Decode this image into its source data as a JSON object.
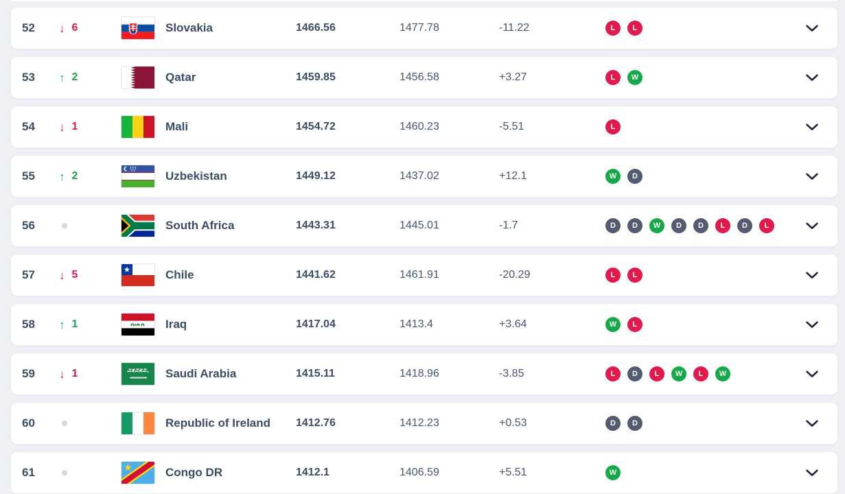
{
  "colors": {
    "background": "#eef0f6",
    "card": "#ffffff",
    "text_dark": "#3c4b66",
    "text_regular": "#47566f",
    "up_green": "#10a74f",
    "down_red": "#e01a4d",
    "badge_win": "#17a948",
    "badge_draw": "#515b72",
    "badge_loss": "#e01a4d",
    "no_change_dot": "#d3d9e3",
    "chevron": "#16233f"
  },
  "rows": [
    {
      "rank": "52",
      "movement": {
        "direction": "down",
        "value": "6"
      },
      "flag": "svk",
      "country": "Slovakia",
      "total_points": "1466.56",
      "previous_points": "1477.78",
      "change": "-11.22",
      "form": [
        "L",
        "L"
      ]
    },
    {
      "rank": "53",
      "movement": {
        "direction": "up",
        "value": "2"
      },
      "flag": "qat",
      "country": "Qatar",
      "total_points": "1459.85",
      "previous_points": "1456.58",
      "change": "+3.27",
      "form": [
        "L",
        "W"
      ]
    },
    {
      "rank": "54",
      "movement": {
        "direction": "down",
        "value": "1"
      },
      "flag": "mli",
      "country": "Mali",
      "total_points": "1454.72",
      "previous_points": "1460.23",
      "change": "-5.51",
      "form": [
        "L"
      ]
    },
    {
      "rank": "55",
      "movement": {
        "direction": "up",
        "value": "2"
      },
      "flag": "uzb",
      "country": "Uzbekistan",
      "total_points": "1449.12",
      "previous_points": "1437.02",
      "change": "+12.1",
      "form": [
        "W",
        "D"
      ]
    },
    {
      "rank": "56",
      "movement": {
        "direction": "same",
        "value": ""
      },
      "flag": "zaf",
      "country": "South Africa",
      "total_points": "1443.31",
      "previous_points": "1445.01",
      "change": "-1.7",
      "form": [
        "D",
        "D",
        "W",
        "D",
        "D",
        "L",
        "D",
        "L"
      ]
    },
    {
      "rank": "57",
      "movement": {
        "direction": "down",
        "value": "5"
      },
      "flag": "chl",
      "country": "Chile",
      "total_points": "1441.62",
      "previous_points": "1461.91",
      "change": "-20.29",
      "form": [
        "L",
        "L"
      ]
    },
    {
      "rank": "58",
      "movement": {
        "direction": "up",
        "value": "1"
      },
      "flag": "irq",
      "country": "Iraq",
      "total_points": "1417.04",
      "previous_points": "1413.4",
      "change": "+3.64",
      "form": [
        "W",
        "L"
      ]
    },
    {
      "rank": "59",
      "movement": {
        "direction": "down",
        "value": "1"
      },
      "flag": "sau",
      "country": "Saudi Arabia",
      "total_points": "1415.11",
      "previous_points": "1418.96",
      "change": "-3.85",
      "form": [
        "L",
        "D",
        "L",
        "W",
        "L",
        "W"
      ]
    },
    {
      "rank": "60",
      "movement": {
        "direction": "same",
        "value": ""
      },
      "flag": "irl",
      "country": "Republic of Ireland",
      "total_points": "1412.76",
      "previous_points": "1412.23",
      "change": "+0.53",
      "form": [
        "D",
        "D"
      ]
    },
    {
      "rank": "61",
      "movement": {
        "direction": "same",
        "value": ""
      },
      "flag": "cod",
      "country": "Congo DR",
      "total_points": "1412.1",
      "previous_points": "1406.59",
      "change": "+5.51",
      "form": [
        "W"
      ]
    }
  ]
}
